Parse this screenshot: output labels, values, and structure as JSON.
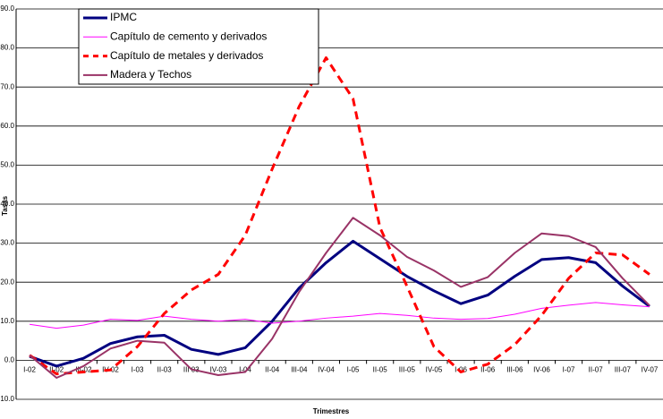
{
  "chart_data": {
    "type": "line",
    "x_label": "Trimestres",
    "y_label": "Tasas",
    "categories": [
      "I-02",
      "II-02",
      "III-02",
      "IV-02",
      "I-03",
      "II-03",
      "III 03",
      "IV-03",
      "I-04",
      "II-04",
      "III-04",
      "IV-04",
      "I-05",
      "II-05",
      "III-05",
      "IV-05",
      "I-06",
      "II-06",
      "III-06",
      "IV-06",
      "I-07",
      "II-07",
      "III-07",
      "IV-07"
    ],
    "series": [
      {
        "name": "IPMC",
        "color": "#000080",
        "width": 3,
        "dash": false,
        "values": [
          1.0,
          -1.5,
          0.5,
          4.3,
          6.0,
          6.4,
          2.8,
          1.5,
          3.2,
          10.0,
          18.5,
          25.0,
          30.5,
          26.0,
          21.5,
          17.8,
          14.5,
          16.7,
          21.5,
          25.8,
          26.3,
          25.0,
          19.0,
          13.8
        ]
      },
      {
        "name": "Capítulo de cemento y derivados",
        "color": "#ff00ff",
        "width": 1,
        "dash": false,
        "values": [
          9.2,
          8.2,
          9.0,
          10.5,
          10.2,
          11.3,
          10.5,
          10.0,
          10.5,
          9.5,
          10.0,
          10.8,
          11.3,
          12.0,
          11.5,
          10.8,
          10.5,
          10.7,
          11.8,
          13.3,
          14.1,
          14.8,
          14.2,
          13.7
        ]
      },
      {
        "name": "Capítulo de metales y derivados",
        "color": "#ff0000",
        "width": 3,
        "dash": true,
        "values": [
          1.3,
          -3.5,
          -3.0,
          -2.5,
          3.5,
          12.0,
          18.0,
          22.0,
          32.0,
          49.0,
          65.0,
          77.5,
          67.0,
          34.0,
          19.0,
          3.5,
          -3.0,
          -1.0,
          4.0,
          11.5,
          21.0,
          27.5,
          27.0,
          22.0
        ]
      },
      {
        "name": "Madera y Techos",
        "color": "#993366",
        "width": 2,
        "dash": false,
        "values": [
          1.3,
          -4.5,
          -1.5,
          3.0,
          5.0,
          4.5,
          -2.3,
          -3.8,
          -3.0,
          5.5,
          17.5,
          27.5,
          36.5,
          32.0,
          26.5,
          23.0,
          18.8,
          21.3,
          27.5,
          32.5,
          31.8,
          29.0,
          21.0,
          14.0
        ]
      }
    ],
    "ylim": [
      -10,
      90
    ],
    "yticks": [
      {
        "value": -10,
        "label": "-10.0"
      },
      {
        "value": 0,
        "label": "0.0"
      },
      {
        "value": 10,
        "label": "10.0"
      },
      {
        "value": 20,
        "label": "20.0"
      },
      {
        "value": 30,
        "label": "30.0"
      },
      {
        "value": 40,
        "label": "40.0"
      },
      {
        "value": 50,
        "label": "50.0"
      },
      {
        "value": 60,
        "label": "60.0"
      },
      {
        "value": 70,
        "label": "70.0"
      },
      {
        "value": 80,
        "label": "80.0"
      },
      {
        "value": 90,
        "label": "90.0"
      }
    ],
    "grid": true,
    "legend": "top-left"
  }
}
